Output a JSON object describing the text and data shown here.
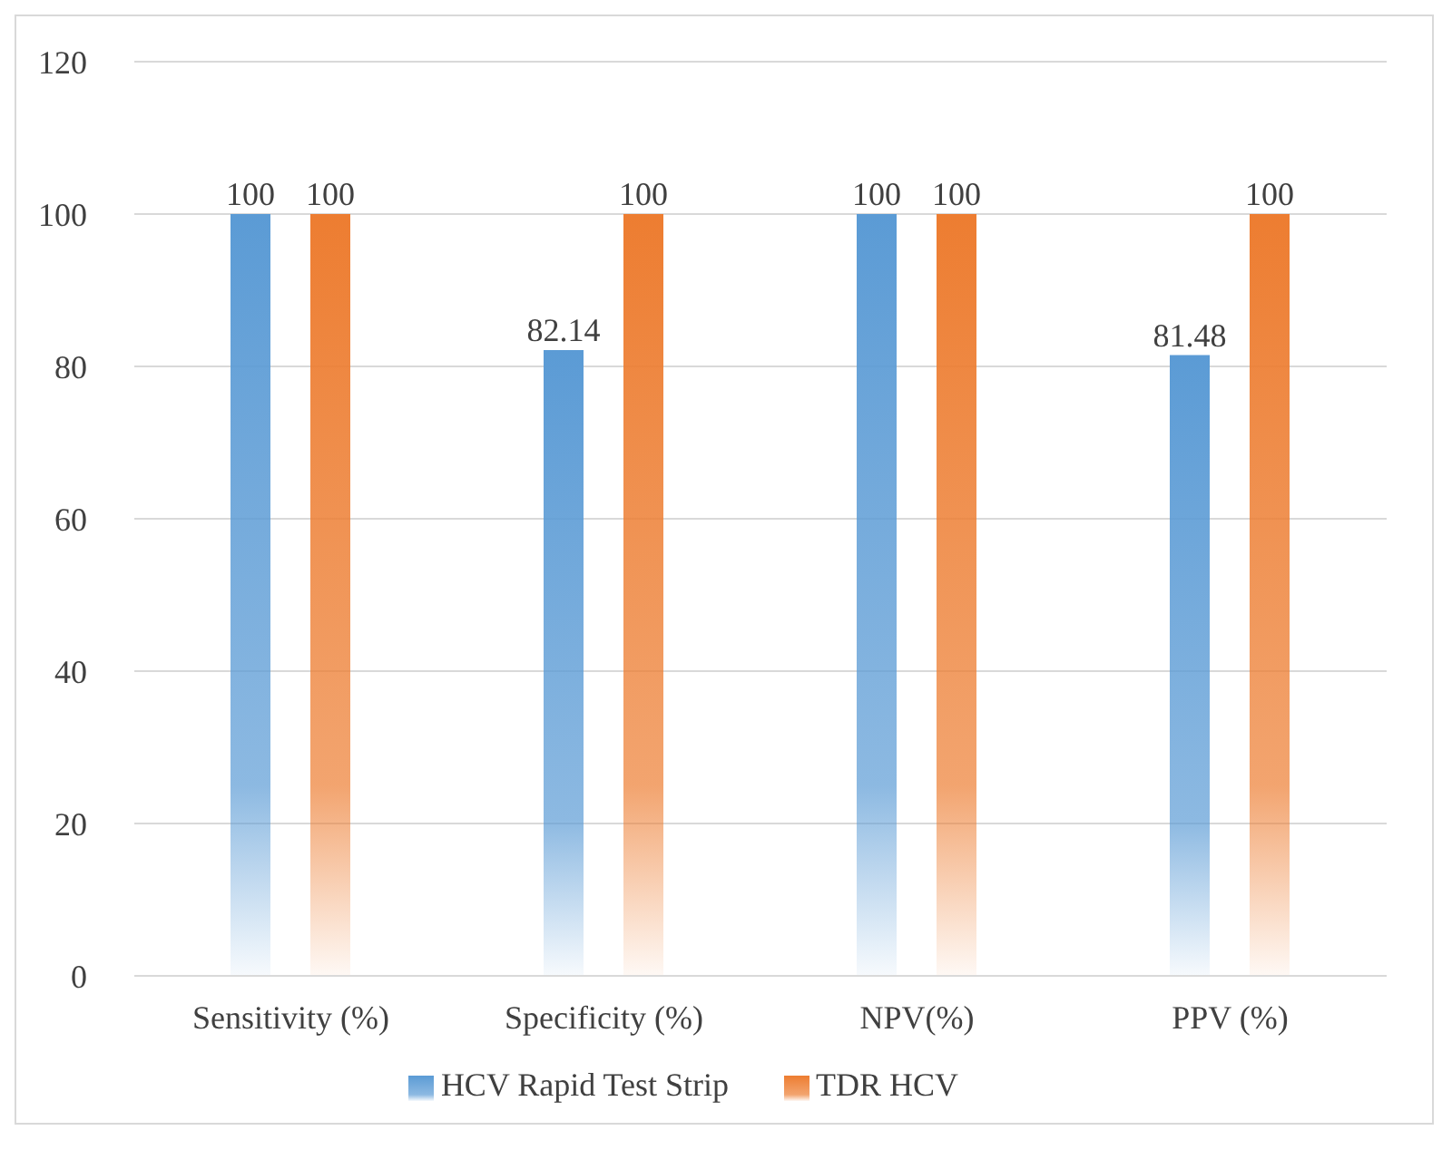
{
  "chart_data": {
    "type": "bar",
    "categories": [
      "Sensitivity (%)",
      "Specificity (%)",
      "NPV(%)",
      "PPV (%)"
    ],
    "series": [
      {
        "name": "HCV Rapid Test Strip",
        "color": "#5b9bd5",
        "values": [
          100,
          82.14,
          100,
          81.48
        ]
      },
      {
        "name": "TDR HCV",
        "color": "#ed7d31",
        "values": [
          100,
          100,
          100,
          100
        ]
      }
    ],
    "ylim": [
      0,
      120
    ],
    "yticks": [
      0,
      20,
      40,
      60,
      80,
      100,
      120
    ],
    "grid": "y",
    "legend": "bottom",
    "data_labels": true
  }
}
